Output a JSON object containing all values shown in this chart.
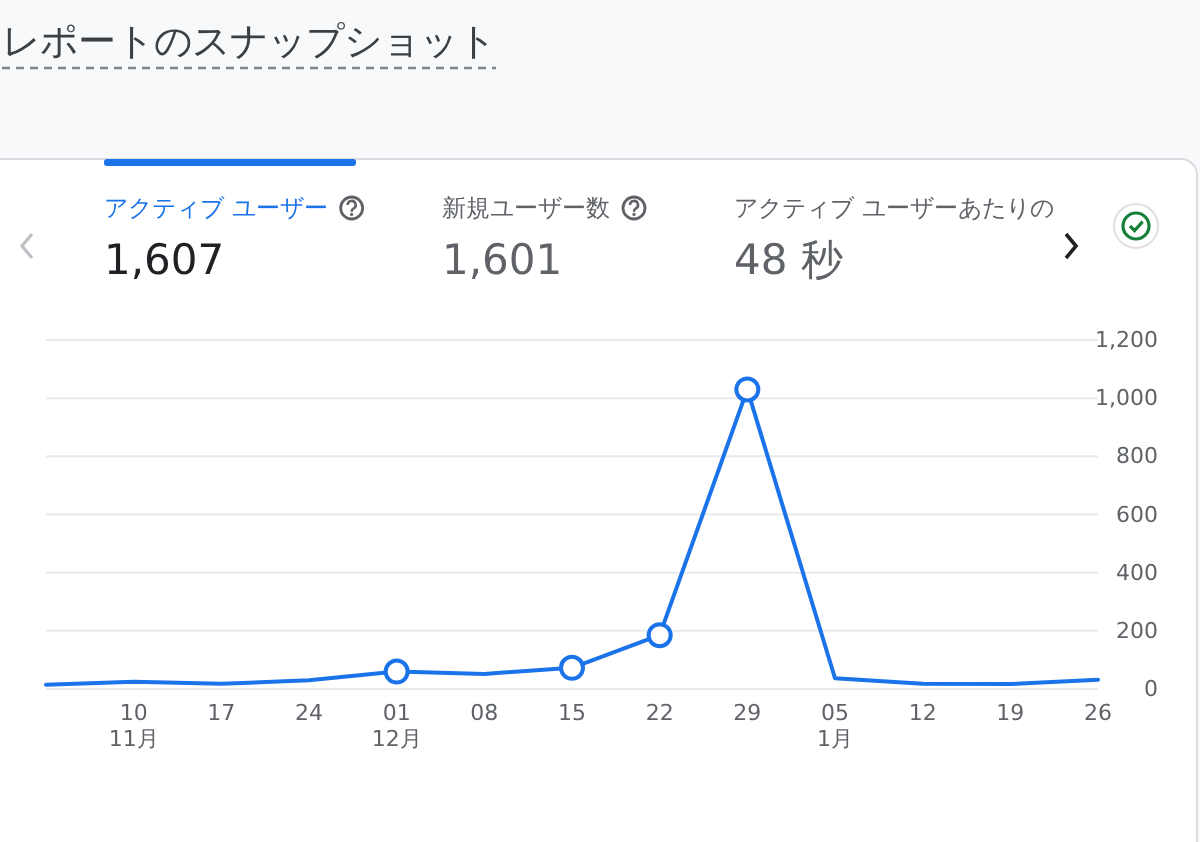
{
  "chart_data": [
    {
      "type": "other",
      "title": "レポートのスナップショット",
      "annotations": [
        "アクティブ ユーザー",
        "1,607",
        "新規ユーザー数",
        "1,601",
        "アクティブ ユーザーあたりの",
        "48 秒"
      ]
    },
    {
      "type": "line",
      "categories": [
        null,
        "10\n11月",
        "17",
        "24",
        "01\n12月",
        "08",
        "15",
        "22",
        "29",
        "05\n1月",
        "12",
        "19",
        "26"
      ],
      "series": [
        {
          "color": "#1a73e8",
          "values": [
            15,
            25,
            18,
            30,
            60,
            52,
            73,
            185,
            1030,
            37,
            18,
            17,
            32
          ]
        },
        {
          "type": "scatter",
          "marker": "circle",
          "color": "#1a73e8",
          "values": [
            null,
            null,
            null,
            null,
            60,
            null,
            73,
            185,
            1030,
            null,
            null,
            null,
            null
          ]
        }
      ],
      "ylim": [
        0,
        1200
      ],
      "yticks": [
        0,
        200,
        400,
        600,
        800,
        {
          "value": 1000,
          "label": "1,000"
        },
        {
          "value": 1200,
          "label": "1,200"
        }
      ],
      "grid": "y"
    }
  ]
}
